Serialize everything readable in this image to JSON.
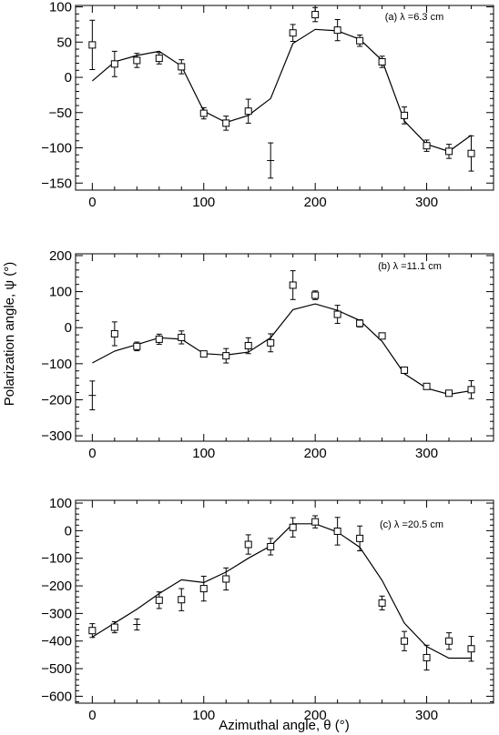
{
  "xlabel": "Azimuthal angle, θ (°)",
  "ylabel": "Polarization angle, ψ (°)",
  "chart_data": [
    {
      "type": "scatter",
      "annotation": "(a) λ =6.3 cm",
      "xlim": [
        -15,
        360
      ],
      "ylim": [
        -160,
        102
      ],
      "xticks": [
        0,
        100,
        200,
        300
      ],
      "yticks": [
        -150,
        -100,
        -50,
        0,
        50,
        100
      ],
      "points": [
        {
          "x": 0,
          "y": 46,
          "err": 35,
          "marker": "square"
        },
        {
          "x": 20,
          "y": 19,
          "err": 18,
          "marker": "square"
        },
        {
          "x": 40,
          "y": 24,
          "err": 10,
          "marker": "square"
        },
        {
          "x": 60,
          "y": 27,
          "err": 8,
          "marker": "square"
        },
        {
          "x": 80,
          "y": 15,
          "err": 10,
          "marker": "square"
        },
        {
          "x": 100,
          "y": -51,
          "err": 8,
          "marker": "square"
        },
        {
          "x": 120,
          "y": -65,
          "err": 10,
          "marker": "square"
        },
        {
          "x": 140,
          "y": -48,
          "err": 17,
          "marker": "square"
        },
        {
          "x": 160,
          "y": -118,
          "err": 25,
          "marker": "cross"
        },
        {
          "x": 180,
          "y": 63,
          "err": 12,
          "marker": "square"
        },
        {
          "x": 200,
          "y": 89,
          "err": 10,
          "marker": "square"
        },
        {
          "x": 220,
          "y": 67,
          "err": 15,
          "marker": "square"
        },
        {
          "x": 240,
          "y": 52,
          "err": 8,
          "marker": "square"
        },
        {
          "x": 260,
          "y": 22,
          "err": 8,
          "marker": "square"
        },
        {
          "x": 280,
          "y": -54,
          "err": 12,
          "marker": "square"
        },
        {
          "x": 300,
          "y": -97,
          "err": 8,
          "marker": "square"
        },
        {
          "x": 320,
          "y": -105,
          "err": 10,
          "marker": "square"
        },
        {
          "x": 340,
          "y": -108,
          "err": 25,
          "marker": "square"
        }
      ],
      "model": {
        "x": [
          0,
          20,
          40,
          60,
          80,
          100,
          120,
          140,
          160,
          180,
          200,
          220,
          240,
          260,
          280,
          300,
          320,
          340
        ],
        "y": [
          -5,
          22,
          31,
          37,
          16,
          -48,
          -64,
          -54,
          -30,
          48,
          68,
          66,
          54,
          24,
          -62,
          -95,
          -105,
          -82
        ]
      }
    },
    {
      "type": "scatter",
      "annotation": "(b) λ =11.1 cm",
      "xlim": [
        -15,
        360
      ],
      "ylim": [
        -315,
        205
      ],
      "xticks": [
        0,
        100,
        200,
        300
      ],
      "yticks": [
        -300,
        -200,
        -100,
        0,
        100,
        200
      ],
      "points": [
        {
          "x": 0,
          "y": -188,
          "err": 40,
          "marker": "cross"
        },
        {
          "x": 20,
          "y": -17,
          "err": 33,
          "marker": "square"
        },
        {
          "x": 40,
          "y": -52,
          "err": 12,
          "marker": "square"
        },
        {
          "x": 60,
          "y": -32,
          "err": 14,
          "marker": "square"
        },
        {
          "x": 80,
          "y": -27,
          "err": 18,
          "marker": "square"
        },
        {
          "x": 100,
          "y": -73,
          "err": 8,
          "marker": "square"
        },
        {
          "x": 120,
          "y": -78,
          "err": 20,
          "marker": "square"
        },
        {
          "x": 140,
          "y": -50,
          "err": 22,
          "marker": "square"
        },
        {
          "x": 160,
          "y": -42,
          "err": 25,
          "marker": "square"
        },
        {
          "x": 180,
          "y": 118,
          "err": 40,
          "marker": "square"
        },
        {
          "x": 200,
          "y": 90,
          "err": 12,
          "marker": "square"
        },
        {
          "x": 220,
          "y": 37,
          "err": 25,
          "marker": "square"
        },
        {
          "x": 240,
          "y": 12,
          "err": 10,
          "marker": "square"
        },
        {
          "x": 260,
          "y": -23,
          "err": 8,
          "marker": "square"
        },
        {
          "x": 280,
          "y": -118,
          "err": 8,
          "marker": "square"
        },
        {
          "x": 300,
          "y": -163,
          "err": 8,
          "marker": "square"
        },
        {
          "x": 320,
          "y": -182,
          "err": 8,
          "marker": "square"
        },
        {
          "x": 340,
          "y": -172,
          "err": 25,
          "marker": "square"
        }
      ],
      "model": {
        "x": [
          0,
          20,
          40,
          60,
          80,
          100,
          120,
          140,
          160,
          180,
          200,
          220,
          240,
          260,
          280,
          300,
          320,
          340
        ],
        "y": [
          -98,
          -65,
          -47,
          -28,
          -32,
          -72,
          -76,
          -68,
          -28,
          50,
          66,
          48,
          20,
          -38,
          -128,
          -168,
          -185,
          -175
        ]
      }
    },
    {
      "type": "scatter",
      "annotation": "(c) λ =20.5 cm",
      "xlim": [
        -15,
        360
      ],
      "ylim": [
        -625,
        110
      ],
      "xticks": [
        0,
        100,
        200,
        300
      ],
      "yticks": [
        -600,
        -500,
        -400,
        -300,
        -200,
        -100,
        0,
        100
      ],
      "points": [
        {
          "x": 0,
          "y": -362,
          "err": 25,
          "marker": "square"
        },
        {
          "x": 20,
          "y": -350,
          "err": 20,
          "marker": "square"
        },
        {
          "x": 40,
          "y": -340,
          "err": 20,
          "marker": "cross"
        },
        {
          "x": 60,
          "y": -252,
          "err": 30,
          "marker": "square"
        },
        {
          "x": 80,
          "y": -250,
          "err": 40,
          "marker": "square"
        },
        {
          "x": 100,
          "y": -210,
          "err": 45,
          "marker": "square"
        },
        {
          "x": 120,
          "y": -175,
          "err": 40,
          "marker": "square"
        },
        {
          "x": 140,
          "y": -50,
          "err": 35,
          "marker": "square"
        },
        {
          "x": 160,
          "y": -58,
          "err": 30,
          "marker": "square"
        },
        {
          "x": 180,
          "y": 12,
          "err": 35,
          "marker": "square"
        },
        {
          "x": 200,
          "y": 32,
          "err": 22,
          "marker": "square"
        },
        {
          "x": 220,
          "y": -2,
          "err": 50,
          "marker": "square"
        },
        {
          "x": 240,
          "y": -28,
          "err": 45,
          "marker": "square"
        },
        {
          "x": 260,
          "y": -262,
          "err": 25,
          "marker": "square"
        },
        {
          "x": 280,
          "y": -400,
          "err": 35,
          "marker": "square"
        },
        {
          "x": 300,
          "y": -460,
          "err": 45,
          "marker": "square"
        },
        {
          "x": 320,
          "y": -400,
          "err": 30,
          "marker": "square"
        },
        {
          "x": 340,
          "y": -428,
          "err": 45,
          "marker": "square"
        }
      ],
      "model": {
        "x": [
          0,
          20,
          40,
          60,
          80,
          100,
          120,
          140,
          160,
          180,
          200,
          220,
          240,
          260,
          280,
          300,
          320,
          340
        ],
        "y": [
          -385,
          -335,
          -285,
          -228,
          -178,
          -188,
          -150,
          -100,
          -55,
          25,
          25,
          -5,
          -60,
          -180,
          -335,
          -420,
          -462,
          -462
        ]
      }
    }
  ]
}
